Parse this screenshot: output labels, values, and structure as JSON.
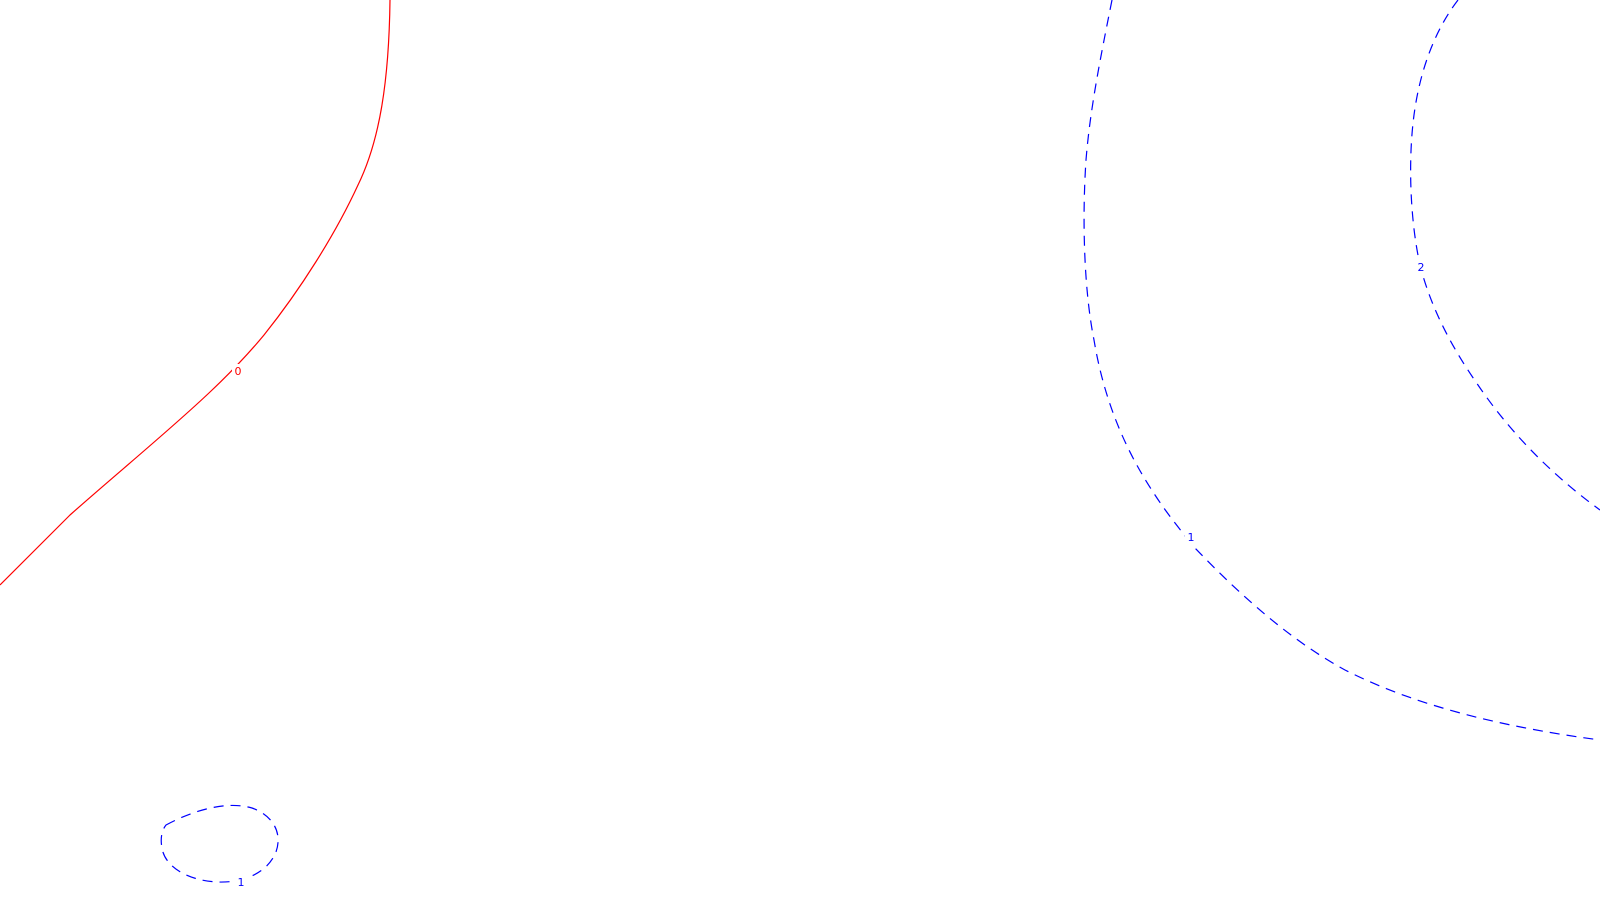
{
  "contours": [
    {
      "id": "contour-level-0",
      "level": "0",
      "style": "solid",
      "color": "#ff0000"
    },
    {
      "id": "contour-level-1",
      "level": "1",
      "style": "dashed",
      "color": "#0000ff"
    },
    {
      "id": "contour-level-2",
      "level": "2",
      "style": "dashed",
      "color": "#0000ff"
    },
    {
      "id": "contour-level-1-loop",
      "level": "1",
      "style": "dashed",
      "color": "#0000ff"
    }
  ]
}
